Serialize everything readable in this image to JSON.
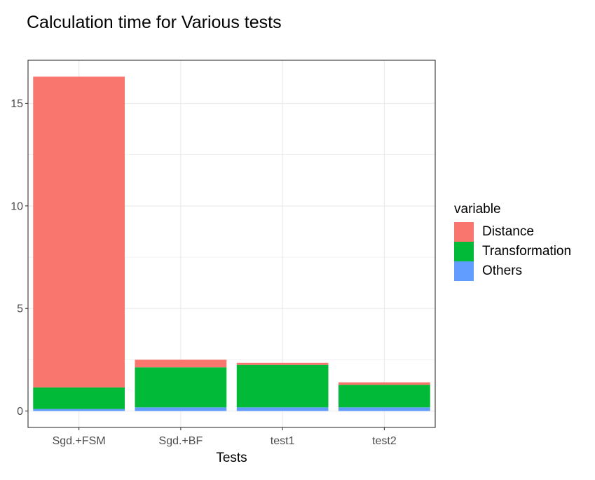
{
  "chart_data": {
    "type": "bar",
    "stacked": true,
    "title": "Calculation time for Various tests",
    "xlabel": "Tests",
    "ylabel": "",
    "categories": [
      "Sgd.+FSM",
      "Sgd.+BF",
      "test1",
      "test2"
    ],
    "series": [
      {
        "name": "Others",
        "color": "#619CFF",
        "values": [
          0.1,
          0.18,
          0.18,
          0.18
        ]
      },
      {
        "name": "Transformation",
        "color": "#00BA38",
        "values": [
          1.05,
          1.95,
          2.07,
          1.1
        ]
      },
      {
        "name": "Distance",
        "color": "#F8766D",
        "values": [
          15.15,
          0.37,
          0.1,
          0.12
        ]
      }
    ],
    "ylim": [
      -0.8,
      17.1
    ],
    "yticks": [
      0,
      5,
      10,
      15
    ],
    "grid": true,
    "legend": {
      "title": "variable",
      "position": "right",
      "order": [
        "Distance",
        "Transformation",
        "Others"
      ]
    }
  }
}
